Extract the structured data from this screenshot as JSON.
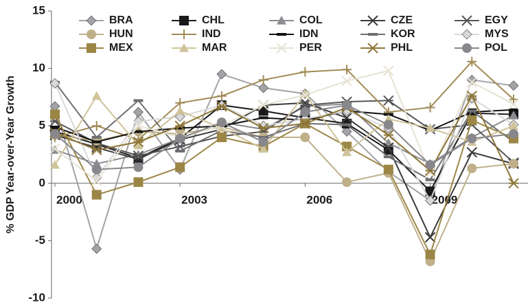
{
  "chart_data": {
    "type": "line",
    "ylabel": "% GDP Year-over-Year Growth",
    "x": [
      2000,
      2001,
      2002,
      2003,
      2004,
      2005,
      2006,
      2007,
      2008,
      2009,
      2010,
      2011
    ],
    "xlim": [
      2000,
      2011
    ],
    "xticks": [
      2000,
      2003,
      2006,
      2009
    ],
    "ylim": [
      -10,
      15
    ],
    "yticks": [
      15,
      10,
      5,
      0,
      -5,
      -10
    ],
    "legend": "top",
    "series": [
      {
        "name": "BRA",
        "color": "#a3a3a7",
        "marker": "diamond",
        "values": [
          6.7,
          -5.7,
          6.2,
          1.2,
          9.5,
          8.3,
          7.8,
          4.5,
          1.0,
          -1.5,
          9.0,
          8.5
        ]
      },
      {
        "name": "CHL",
        "color": "#1a1a1a",
        "marker": "square",
        "values": [
          4.5,
          3.4,
          2.2,
          3.9,
          6.8,
          6.3,
          5.7,
          5.2,
          2.9,
          -0.7,
          6.1,
          6.0
        ]
      },
      {
        "name": "COL",
        "color": "#8c8c90",
        "marker": "triangle",
        "values": [
          2.9,
          1.7,
          2.5,
          3.9,
          5.3,
          4.7,
          6.7,
          6.9,
          3.5,
          1.7,
          4.0,
          5.9
        ]
      },
      {
        "name": "CZE",
        "color": "#3a3a3a",
        "marker": "x",
        "values": [
          4.2,
          3.1,
          2.1,
          3.8,
          4.7,
          6.8,
          7.0,
          5.7,
          3.1,
          -4.7,
          2.7,
          1.7
        ]
      },
      {
        "name": "EGY",
        "color": "#555558",
        "marker": "asterisk",
        "values": [
          5.4,
          3.5,
          2.4,
          3.2,
          4.1,
          4.5,
          6.8,
          7.1,
          7.2,
          4.7,
          5.1,
          1.8
        ]
      },
      {
        "name": "HUN",
        "color": "#bfb08a",
        "marker": "circle",
        "values": [
          4.2,
          3.7,
          4.5,
          4.3,
          4.9,
          4.0,
          4.0,
          0.1,
          0.9,
          -6.8,
          1.3,
          1.7
        ]
      },
      {
        "name": "IND",
        "color": "#a08b55",
        "marker": "plus",
        "values": [
          4.0,
          5.0,
          3.8,
          7.0,
          7.6,
          9.0,
          9.7,
          9.9,
          6.2,
          6.6,
          10.6,
          7.3
        ]
      },
      {
        "name": "IDN",
        "color": "#111111",
        "marker": "dash",
        "values": [
          4.9,
          3.6,
          4.5,
          4.8,
          5.0,
          5.7,
          5.5,
          6.3,
          6.0,
          4.6,
          6.2,
          6.4
        ]
      },
      {
        "name": "KOR",
        "color": "#6e6e72",
        "marker": "dash",
        "values": [
          8.8,
          4.0,
          7.2,
          2.8,
          4.6,
          4.0,
          5.2,
          5.1,
          2.3,
          0.3,
          6.3,
          3.6
        ]
      },
      {
        "name": "MYS",
        "color": "#d8d8d8",
        "marker": "diamond",
        "values": [
          8.7,
          0.5,
          5.4,
          5.8,
          6.8,
          5.0,
          5.6,
          6.3,
          4.8,
          -1.5,
          7.4,
          5.1
        ]
      },
      {
        "name": "MEX",
        "color": "#9c8646",
        "marker": "square",
        "values": [
          6.0,
          -1.0,
          0.1,
          1.4,
          4.0,
          3.2,
          5.2,
          3.2,
          1.2,
          -6.2,
          5.5,
          3.9
        ]
      },
      {
        "name": "MAR",
        "color": "#cfc39a",
        "marker": "triangle",
        "values": [
          1.6,
          7.6,
          3.3,
          6.3,
          4.8,
          3.0,
          7.8,
          2.7,
          5.6,
          4.8,
          3.6,
          5.0
        ]
      },
      {
        "name": "PER",
        "color": "#e6e2d3",
        "marker": "x",
        "values": [
          3.0,
          0.2,
          5.0,
          4.0,
          5.0,
          6.8,
          7.7,
          8.9,
          9.8,
          0.9,
          8.8,
          6.9
        ]
      },
      {
        "name": "PHL",
        "color": "#8e7638",
        "marker": "asterisk",
        "values": [
          4.4,
          2.9,
          3.6,
          5.0,
          6.7,
          4.8,
          5.2,
          6.6,
          4.2,
          1.1,
          7.6,
          0.0
        ]
      },
      {
        "name": "POL",
        "color": "#88888c",
        "marker": "circle",
        "values": [
          4.3,
          1.2,
          1.4,
          3.9,
          5.3,
          3.6,
          6.2,
          6.8,
          5.1,
          1.6,
          3.9,
          4.3
        ]
      }
    ]
  }
}
